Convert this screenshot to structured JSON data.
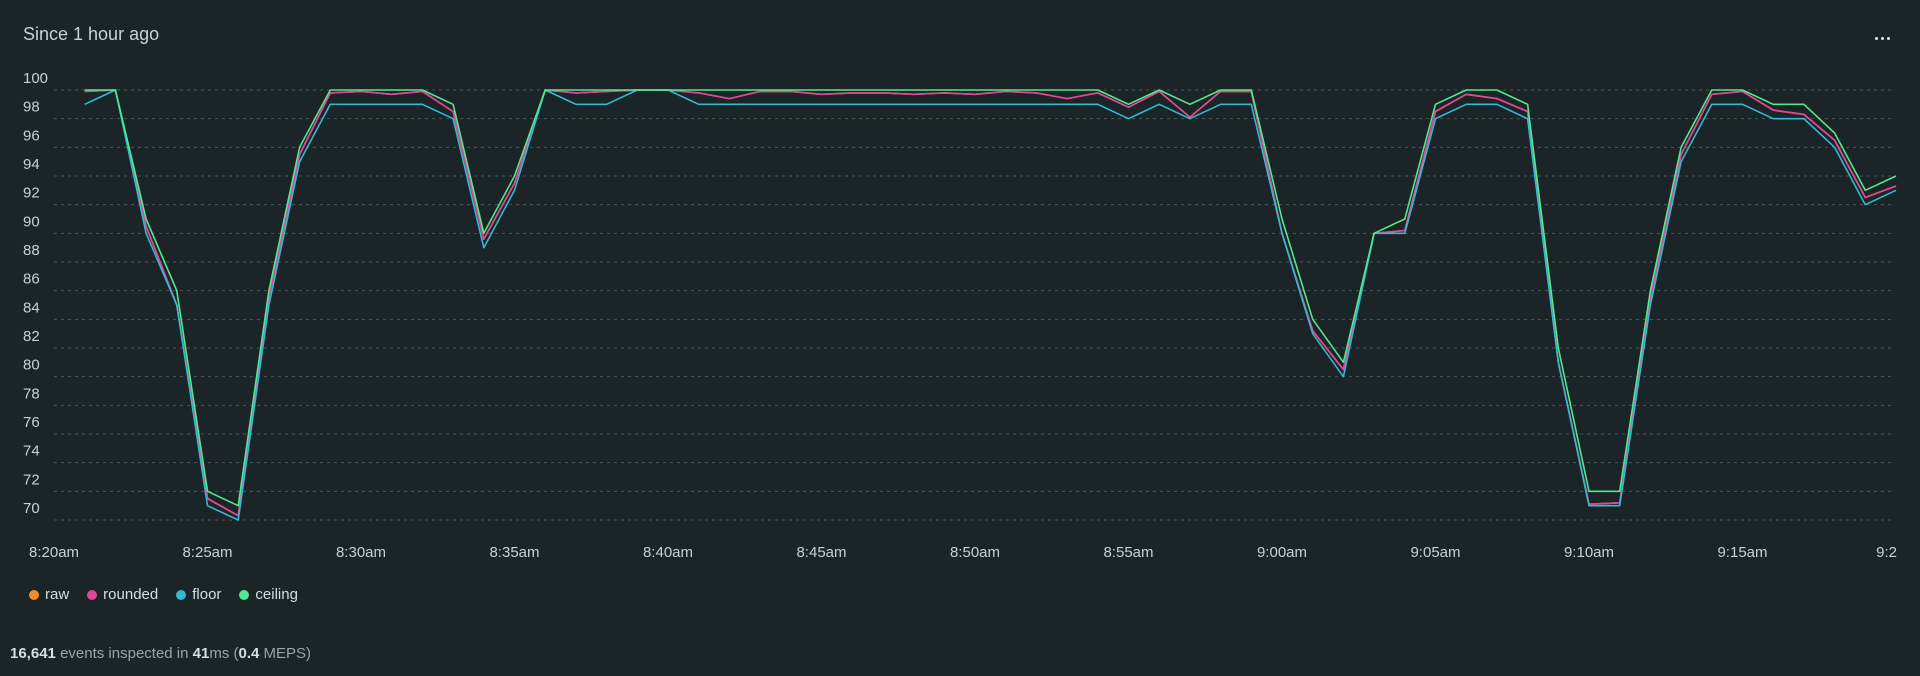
{
  "header": {
    "title": "Since 1 hour ago"
  },
  "footer": {
    "events_count": "16,641",
    "events_text": "events inspected in",
    "ms_value": "41",
    "ms_unit": "ms (",
    "meps_value": "0.4",
    "meps_unit": "MEPS)"
  },
  "chart_data": {
    "type": "line",
    "ylim": [
      70,
      100
    ],
    "yticks": [
      70,
      72,
      74,
      76,
      78,
      80,
      82,
      84,
      86,
      88,
      90,
      92,
      94,
      96,
      98,
      100
    ],
    "xticks": [
      "8:20am",
      "8:25am",
      "8:30am",
      "8:35am",
      "8:40am",
      "8:45am",
      "8:50am",
      "8:55am",
      "9:00am",
      "9:05am",
      "9:10am",
      "9:15am",
      "9:2"
    ],
    "x_minutes": [
      1,
      2,
      3,
      4,
      5,
      6,
      7,
      8,
      9,
      10,
      11,
      12,
      13,
      14,
      15,
      16,
      17,
      18,
      19,
      20,
      21,
      22,
      23,
      24,
      25,
      26,
      27,
      28,
      29,
      30,
      31,
      32,
      33,
      34,
      35,
      36,
      37,
      38,
      39,
      40,
      41,
      42,
      43,
      44,
      45,
      46,
      47,
      48,
      49,
      50,
      51,
      52,
      53,
      54,
      55,
      56,
      57,
      58,
      59,
      60
    ],
    "legend_position": "bottom-left",
    "series": [
      {
        "name": "raw",
        "color": "#f28c28",
        "values": [
          99.9,
          100,
          90.5,
          85,
          71.5,
          70.3,
          85.5,
          95.5,
          99.8,
          99.9,
          99.7,
          99.9,
          98.5,
          89.6,
          93.5,
          100,
          99.8,
          99.9,
          100,
          100,
          99.8,
          99.4,
          99.9,
          99.9,
          99.7,
          99.8,
          99.8,
          99.7,
          99.8,
          99.7,
          99.9,
          99.8,
          99.4,
          99.8,
          98.8,
          99.9,
          98.1,
          99.9,
          99.9,
          90,
          83.2,
          80.5,
          90,
          90.2,
          98.5,
          99.7,
          99.4,
          98.5,
          81,
          71.1,
          71.2,
          85.5,
          95.5,
          99.7,
          99.9,
          98.6,
          98.3,
          96.5,
          92.5,
          93.3
        ]
      },
      {
        "name": "rounded",
        "color": "#e0459b",
        "values": [
          99.9,
          100,
          90.5,
          85,
          71.5,
          70.3,
          85.5,
          95.5,
          99.8,
          99.9,
          99.7,
          99.9,
          98.5,
          89.6,
          93.5,
          100,
          99.8,
          99.9,
          100,
          100,
          99.8,
          99.4,
          99.9,
          99.9,
          99.7,
          99.8,
          99.8,
          99.7,
          99.8,
          99.7,
          99.9,
          99.8,
          99.4,
          99.8,
          98.8,
          99.9,
          98.1,
          99.9,
          99.9,
          90,
          83.2,
          80.5,
          90,
          90.2,
          98.5,
          99.7,
          99.4,
          98.5,
          81,
          71.1,
          71.2,
          85.5,
          95.5,
          99.7,
          99.9,
          98.6,
          98.3,
          96.5,
          92.5,
          93.3
        ]
      },
      {
        "name": "floor",
        "color": "#34b9d0",
        "values": [
          99,
          100,
          90,
          85,
          71,
          70,
          85,
          95,
          99,
          99,
          99,
          99,
          98,
          89,
          93,
          100,
          99,
          99,
          100,
          100,
          99,
          99,
          99,
          99,
          99,
          99,
          99,
          99,
          99,
          99,
          99,
          99,
          99,
          99,
          98,
          99,
          98,
          99,
          99,
          90,
          83,
          80,
          90,
          90,
          98,
          99,
          99,
          98,
          81,
          71,
          71,
          85,
          95,
          99,
          99,
          98,
          98,
          96,
          92,
          93
        ]
      },
      {
        "name": "ceiling",
        "color": "#52e88f",
        "values": [
          100,
          100,
          91,
          86,
          72,
          71,
          86,
          96,
          100,
          100,
          100,
          100,
          99,
          90,
          94,
          100,
          100,
          100,
          100,
          100,
          100,
          100,
          100,
          100,
          100,
          100,
          100,
          100,
          100,
          100,
          100,
          100,
          100,
          100,
          99,
          100,
          99,
          100,
          100,
          91,
          84,
          81,
          90,
          91,
          99,
          100,
          100,
          99,
          82,
          72,
          72,
          86,
          96,
          100,
          100,
          99,
          99,
          97,
          93,
          94
        ]
      }
    ]
  }
}
